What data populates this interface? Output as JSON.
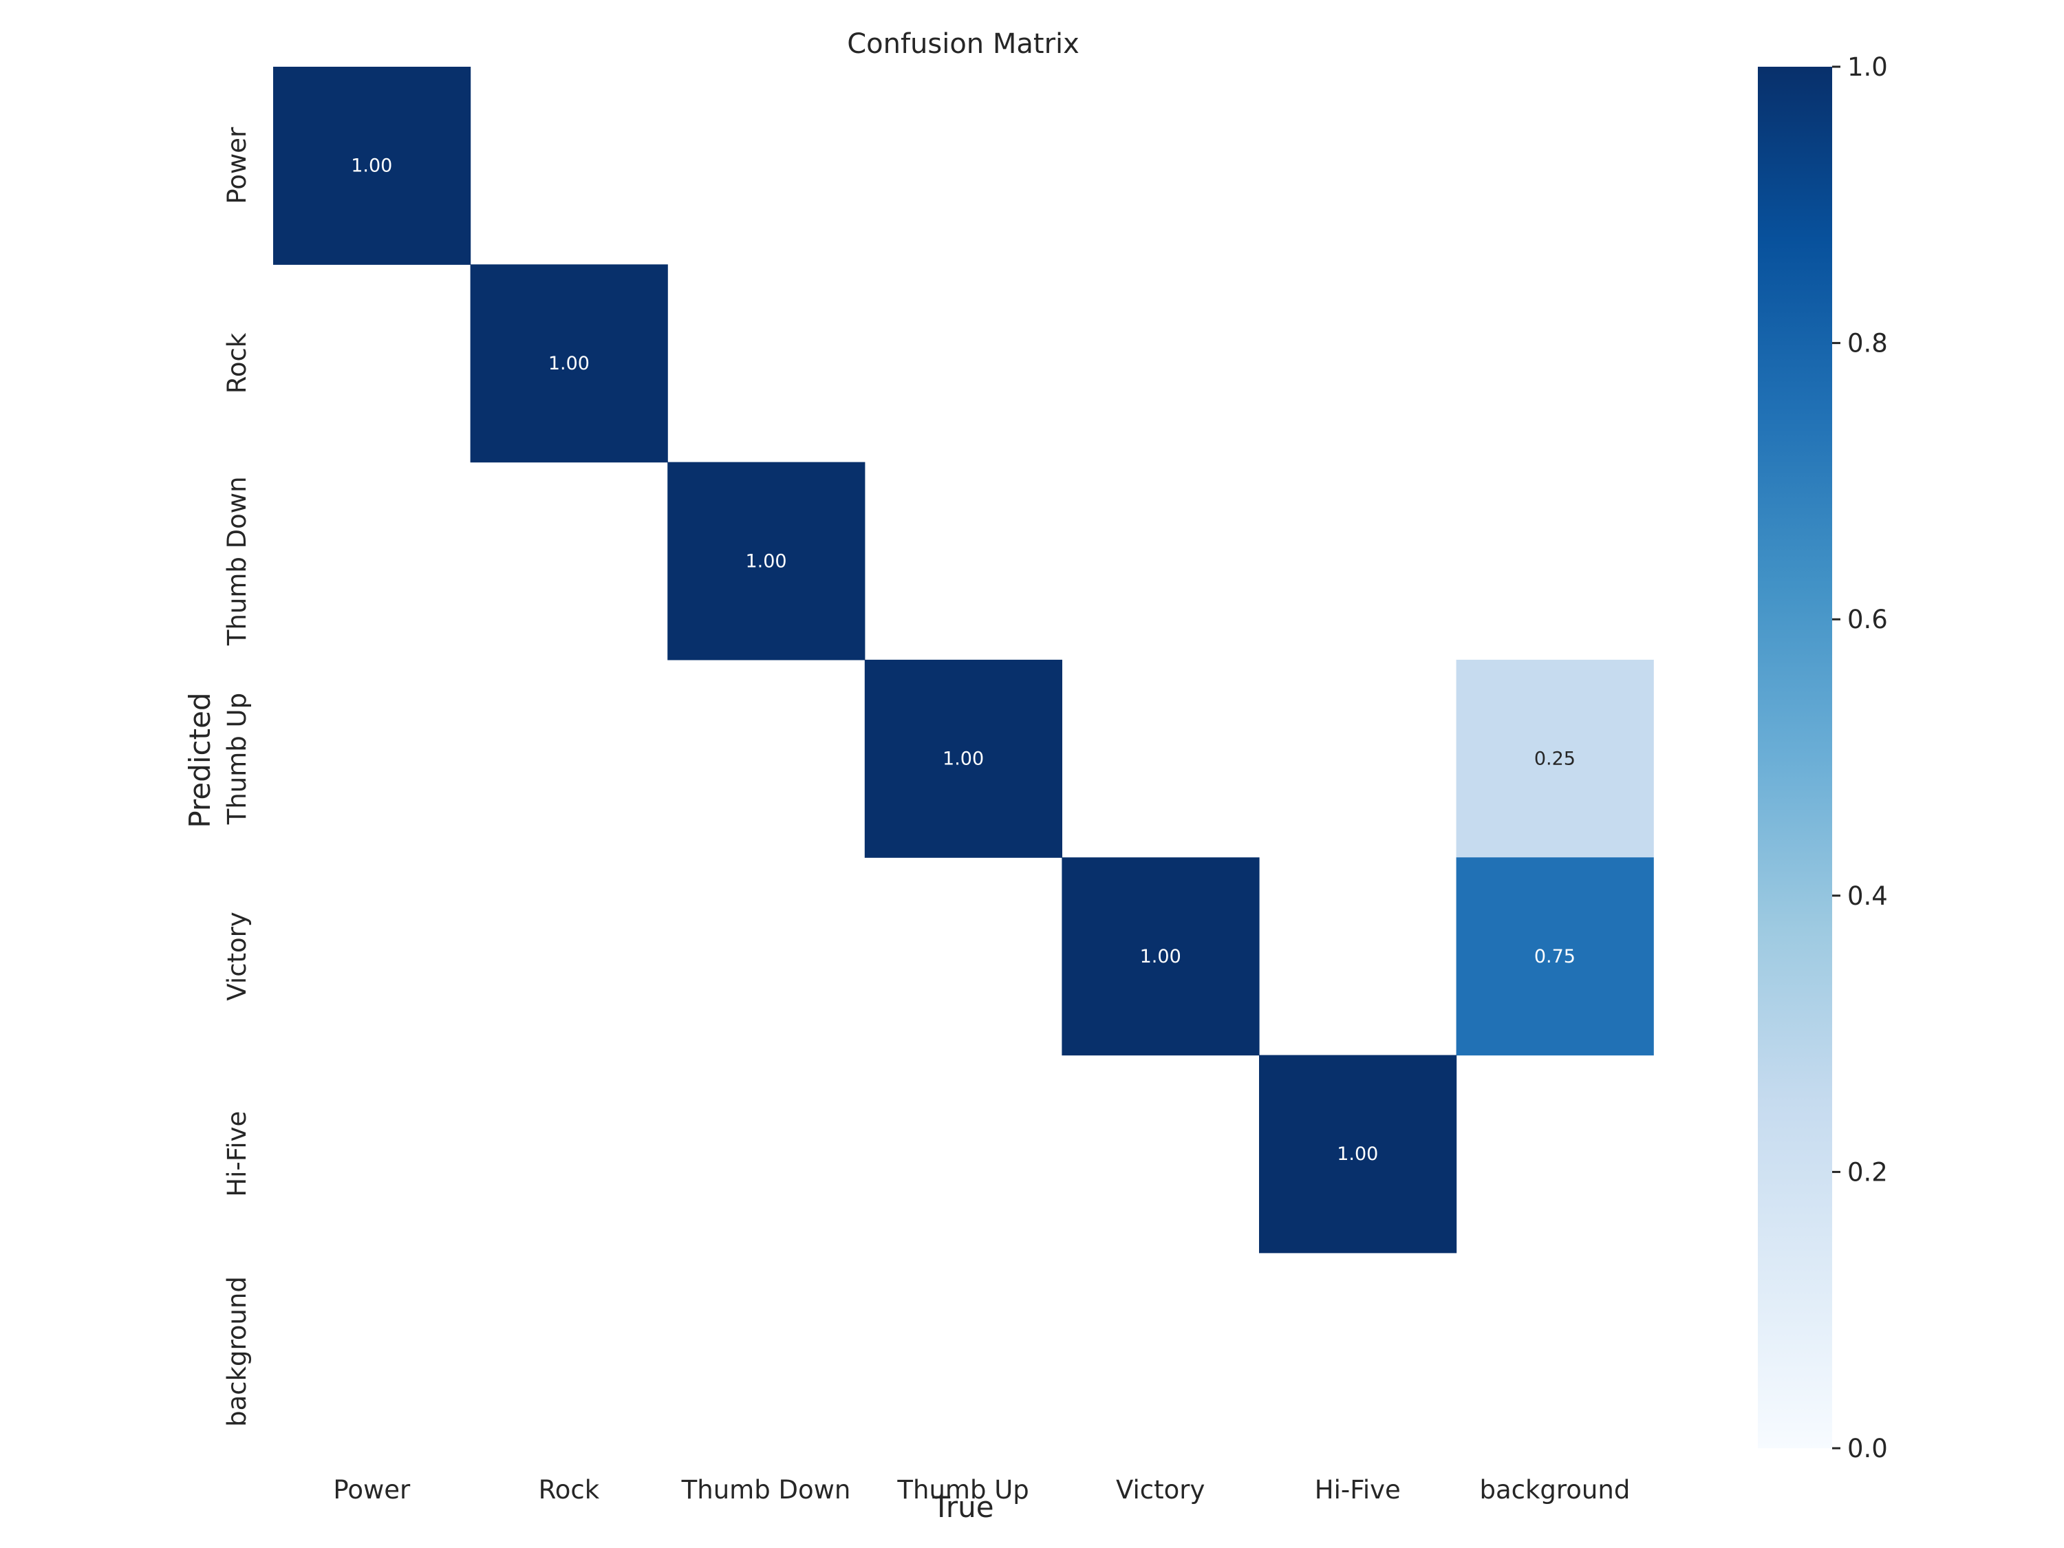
{
  "chart_data": {
    "type": "heatmap",
    "title": "Confusion Matrix",
    "xlabel": "True",
    "ylabel": "Predicted",
    "x_categories": [
      "Power",
      "Rock",
      "Thumb Down",
      "Thumb Up",
      "Victory",
      "Hi-Five",
      "background"
    ],
    "y_categories": [
      "Power",
      "Rock",
      "Thumb Down",
      "Thumb Up",
      "Victory",
      "Hi-Five",
      "background"
    ],
    "cells": [
      {
        "row": 0,
        "col": 0,
        "value": 1.0,
        "label": "1.00"
      },
      {
        "row": 1,
        "col": 1,
        "value": 1.0,
        "label": "1.00"
      },
      {
        "row": 2,
        "col": 2,
        "value": 1.0,
        "label": "1.00"
      },
      {
        "row": 3,
        "col": 3,
        "value": 1.0,
        "label": "1.00"
      },
      {
        "row": 3,
        "col": 6,
        "value": 0.25,
        "label": "0.25"
      },
      {
        "row": 4,
        "col": 4,
        "value": 1.0,
        "label": "1.00"
      },
      {
        "row": 4,
        "col": 6,
        "value": 0.75,
        "label": "0.75"
      },
      {
        "row": 5,
        "col": 5,
        "value": 1.0,
        "label": "1.00"
      }
    ],
    "colorbar": {
      "min": 0.0,
      "max": 1.0,
      "ticks": [
        "0.0",
        "0.2",
        "0.4",
        "0.6",
        "0.8",
        "1.0"
      ],
      "colormap": "Blues",
      "stops": [
        "#f7fbff",
        "#deebf7",
        "#c6dbef",
        "#9ecae1",
        "#6baed6",
        "#4292c6",
        "#2171b5",
        "#08519c",
        "#08306b"
      ]
    }
  }
}
